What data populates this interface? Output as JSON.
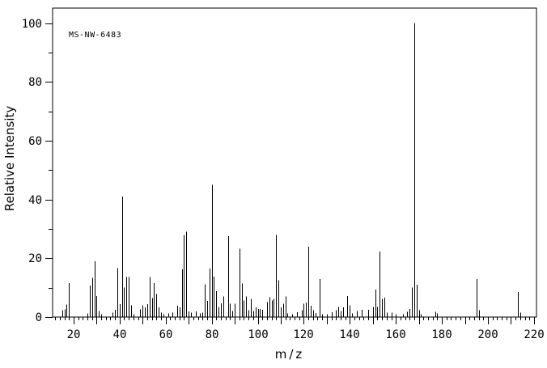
{
  "chart_data": {
    "type": "bar",
    "subtype": "mass-spectrum",
    "annotation": "MS-NW-6483",
    "xlabel": "m/z",
    "ylabel": "Relative Intensity",
    "xlim": [
      10,
      221
    ],
    "ylim": [
      0,
      105
    ],
    "x_tick_labels": [
      20,
      40,
      60,
      80,
      100,
      120,
      140,
      160,
      180,
      200,
      220
    ],
    "x_minor_tick_step": 2,
    "x_medium_tick_step": 10,
    "y_tick_labels": [
      0,
      20,
      40,
      60,
      80,
      100
    ],
    "y_minor_ticks": [
      10,
      30,
      50,
      70,
      90
    ],
    "grid": false,
    "legend": null,
    "colors": {
      "foreground": "#000000",
      "background": "#ffffff"
    },
    "peaks": [
      [
        15,
        2.4
      ],
      [
        16,
        2.6
      ],
      [
        17,
        4.2
      ],
      [
        18,
        11.6
      ],
      [
        26,
        1.2
      ],
      [
        27,
        10.7
      ],
      [
        28,
        13.4
      ],
      [
        29,
        19.0
      ],
      [
        30,
        7.2
      ],
      [
        31,
        2.0
      ],
      [
        32,
        1.0
      ],
      [
        37,
        1.5
      ],
      [
        38,
        2.5
      ],
      [
        39,
        16.6
      ],
      [
        40,
        4.4
      ],
      [
        41,
        41.0
      ],
      [
        42,
        10.0
      ],
      [
        43,
        13.6
      ],
      [
        44,
        13.6
      ],
      [
        45,
        4.0
      ],
      [
        46,
        1.0
      ],
      [
        49,
        2.6
      ],
      [
        50,
        4.0
      ],
      [
        51,
        3.3
      ],
      [
        52,
        4.4
      ],
      [
        53,
        13.6
      ],
      [
        54,
        6.5
      ],
      [
        55,
        11.6
      ],
      [
        56,
        7.9
      ],
      [
        57,
        3.3
      ],
      [
        58,
        1.5
      ],
      [
        59,
        1.0
      ],
      [
        61,
        1.2
      ],
      [
        63,
        1.5
      ],
      [
        65,
        3.8
      ],
      [
        66,
        3.3
      ],
      [
        67,
        16.2
      ],
      [
        68,
        28.0
      ],
      [
        69,
        29.0
      ],
      [
        70,
        1.9
      ],
      [
        71,
        1.5
      ],
      [
        73,
        1.9
      ],
      [
        75,
        1.2
      ],
      [
        76,
        1.5
      ],
      [
        77,
        11.1
      ],
      [
        78,
        5.5
      ],
      [
        79,
        16.5
      ],
      [
        80,
        45.0
      ],
      [
        81,
        13.8
      ],
      [
        82,
        8.8
      ],
      [
        83,
        3.3
      ],
      [
        84,
        4.7
      ],
      [
        85,
        7.0
      ],
      [
        87,
        27.5
      ],
      [
        88,
        4.5
      ],
      [
        89,
        2.0
      ],
      [
        90,
        4.5
      ],
      [
        92,
        23.2
      ],
      [
        93,
        11.4
      ],
      [
        94,
        5.6
      ],
      [
        95,
        7.0
      ],
      [
        96,
        2.4
      ],
      [
        97,
        6.2
      ],
      [
        98,
        2.1
      ],
      [
        99,
        3.3
      ],
      [
        100,
        2.8
      ],
      [
        101,
        2.8
      ],
      [
        102,
        2.5
      ],
      [
        104,
        5.1
      ],
      [
        105,
        6.8
      ],
      [
        106,
        5.6
      ],
      [
        107,
        6.2
      ],
      [
        108,
        28.0
      ],
      [
        109,
        12.5
      ],
      [
        110,
        3.3
      ],
      [
        111,
        4.5
      ],
      [
        112,
        7.0
      ],
      [
        113,
        1.2
      ],
      [
        115,
        1.0
      ],
      [
        117,
        1.7
      ],
      [
        119,
        2.4
      ],
      [
        120,
        4.6
      ],
      [
        121,
        4.9
      ],
      [
        122,
        24.0
      ],
      [
        123,
        3.8
      ],
      [
        124,
        2.4
      ],
      [
        125,
        1.4
      ],
      [
        127,
        13.0
      ],
      [
        128,
        1.0
      ],
      [
        130,
        1.0
      ],
      [
        132,
        1.7
      ],
      [
        134,
        2.4
      ],
      [
        135,
        3.5
      ],
      [
        136,
        2.0
      ],
      [
        137,
        3.3
      ],
      [
        139,
        7.2
      ],
      [
        140,
        4.0
      ],
      [
        141,
        1.2
      ],
      [
        143,
        2.1
      ],
      [
        145,
        2.5
      ],
      [
        148,
        2.5
      ],
      [
        150,
        3.5
      ],
      [
        151,
        9.3
      ],
      [
        152,
        3.5
      ],
      [
        153,
        22.3
      ],
      [
        154,
        6.2
      ],
      [
        155,
        6.6
      ],
      [
        156,
        1.5
      ],
      [
        158,
        1.5
      ],
      [
        160,
        1.0
      ],
      [
        163,
        1.0
      ],
      [
        165,
        1.8
      ],
      [
        166,
        2.8
      ],
      [
        167,
        10.0
      ],
      [
        168,
        100.0
      ],
      [
        169,
        11.0
      ],
      [
        170,
        2.4
      ],
      [
        171,
        1.0
      ],
      [
        177,
        1.8
      ],
      [
        178,
        1.2
      ],
      [
        195,
        13.0
      ],
      [
        196,
        2.4
      ],
      [
        213,
        8.5
      ],
      [
        214,
        1.5
      ]
    ]
  }
}
